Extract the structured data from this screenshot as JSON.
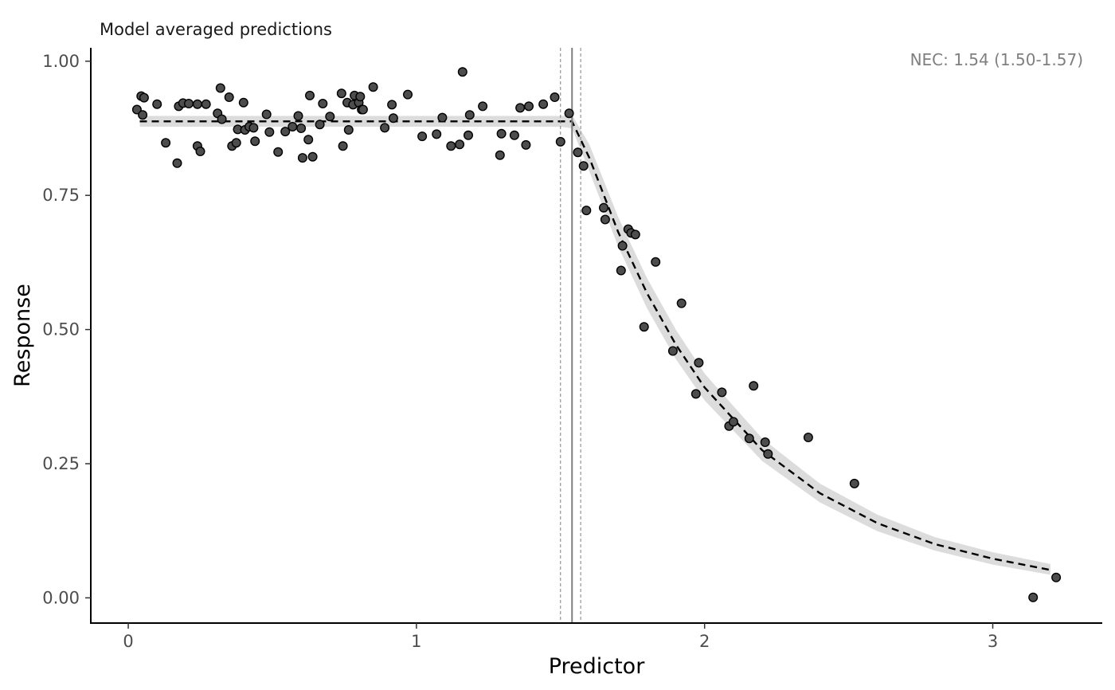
{
  "chart_data": {
    "type": "scatter",
    "title": "Model averaged predictions",
    "xlabel": "Predictor",
    "ylabel": "Response",
    "xlim": [
      -0.13,
      3.38
    ],
    "ylim": [
      -0.047,
      1.025
    ],
    "x_ticks": [
      0,
      1,
      2,
      3
    ],
    "x_tick_labels": [
      "0",
      "1",
      "2",
      "3"
    ],
    "y_ticks": [
      0.0,
      0.25,
      0.5,
      0.75,
      1.0
    ],
    "y_tick_labels": [
      "0.00",
      "0.25",
      "0.50",
      "0.75",
      "1.00"
    ],
    "grid": false,
    "annotation": "NEC: 1.54 (1.50-1.57)",
    "nec": {
      "estimate": 1.54,
      "lower": 1.5,
      "upper": 1.57
    },
    "colors": {
      "points_fill": "#4d4d4d",
      "points_stroke": "#000000",
      "ribbon": "#dcdcdc",
      "fit_line": "#000000",
      "nec_line": "#7f7f7f",
      "annotation": "#7f7f7f"
    },
    "fit": {
      "x": [
        0.04,
        0.5,
        1.0,
        1.5,
        1.54,
        1.6,
        1.7,
        1.8,
        1.9,
        2.0,
        2.2,
        2.4,
        2.6,
        2.8,
        3.0,
        3.2
      ],
      "y": [
        0.888,
        0.888,
        0.888,
        0.888,
        0.888,
        0.82,
        0.682,
        0.568,
        0.472,
        0.392,
        0.275,
        0.195,
        0.139,
        0.1,
        0.073,
        0.052
      ],
      "lower": [
        0.878,
        0.878,
        0.878,
        0.878,
        0.875,
        0.795,
        0.655,
        0.54,
        0.445,
        0.368,
        0.255,
        0.178,
        0.124,
        0.088,
        0.062,
        0.043
      ],
      "upper": [
        0.898,
        0.898,
        0.898,
        0.898,
        0.9,
        0.845,
        0.71,
        0.596,
        0.5,
        0.418,
        0.297,
        0.213,
        0.155,
        0.113,
        0.085,
        0.063
      ]
    },
    "series": [
      {
        "x": [
          0.03,
          0.045,
          0.05,
          0.055,
          0.1,
          0.13,
          0.17,
          0.175,
          0.19,
          0.21,
          0.24,
          0.24,
          0.25,
          0.27,
          0.31,
          0.32,
          0.325,
          0.35,
          0.36,
          0.375,
          0.38,
          0.4,
          0.405,
          0.42,
          0.435,
          0.44,
          0.48,
          0.49,
          0.52,
          0.545,
          0.57,
          0.59,
          0.6,
          0.605,
          0.625,
          0.63,
          0.64,
          0.665,
          0.675,
          0.7,
          0.74,
          0.745,
          0.76,
          0.765,
          0.78,
          0.785,
          0.8,
          0.805,
          0.81,
          0.815,
          0.85,
          0.89,
          0.915,
          0.92,
          0.97,
          1.02,
          1.07,
          1.09,
          1.12,
          1.15,
          1.16,
          1.18,
          1.185,
          1.23,
          1.29,
          1.295,
          1.34,
          1.36,
          1.38,
          1.39,
          1.44,
          1.48,
          1.5,
          1.53,
          1.56,
          1.58,
          1.59,
          1.65,
          1.655,
          1.71,
          1.715,
          1.735,
          1.745,
          1.76,
          1.79,
          1.83,
          1.89,
          1.92,
          1.97,
          1.98,
          2.06,
          2.085,
          2.1,
          2.155,
          2.17,
          2.21,
          2.22,
          2.36,
          2.52,
          3.14,
          3.22
        ],
        "y": [
          0.91,
          0.935,
          0.9,
          0.932,
          0.92,
          0.848,
          0.81,
          0.916,
          0.922,
          0.921,
          0.842,
          0.92,
          0.832,
          0.92,
          0.903,
          0.95,
          0.892,
          0.933,
          0.842,
          0.848,
          0.873,
          0.923,
          0.872,
          0.878,
          0.876,
          0.851,
          0.901,
          0.868,
          0.831,
          0.869,
          0.878,
          0.898,
          0.875,
          0.82,
          0.854,
          0.936,
          0.822,
          0.882,
          0.921,
          0.897,
          0.94,
          0.842,
          0.923,
          0.872,
          0.919,
          0.936,
          0.923,
          0.934,
          0.91,
          0.91,
          0.952,
          0.876,
          0.919,
          0.894,
          0.938,
          0.86,
          0.864,
          0.895,
          0.842,
          0.845,
          0.98,
          0.862,
          0.9,
          0.916,
          0.825,
          0.865,
          0.862,
          0.913,
          0.844,
          0.916,
          0.92,
          0.933,
          0.85,
          0.903,
          0.83,
          0.805,
          0.722,
          0.727,
          0.705,
          0.61,
          0.656,
          0.687,
          0.68,
          0.677,
          0.505,
          0.626,
          0.46,
          0.549,
          0.38,
          0.438,
          0.383,
          0.32,
          0.328,
          0.297,
          0.395,
          0.29,
          0.268,
          0.299,
          0.213,
          0.001,
          0.038
        ]
      }
    ]
  }
}
